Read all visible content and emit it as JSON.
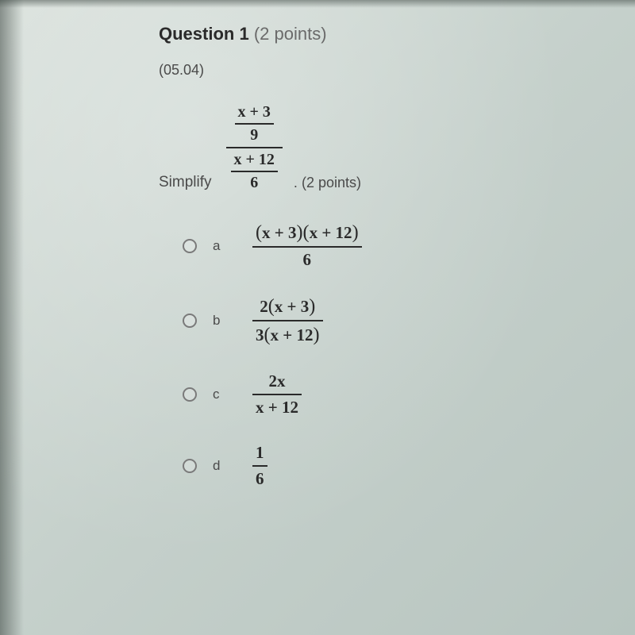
{
  "header": {
    "title_bold": "Question 1",
    "title_light": "(2 points)"
  },
  "section_code": "(05.04)",
  "prompt": {
    "label": "Simplify",
    "expression": {
      "top_numer": "x + 3",
      "top_denom": "9",
      "bot_numer": "x + 12",
      "bot_denom": "6"
    },
    "after_dot": ".",
    "after_points": "(2 points)"
  },
  "options": [
    {
      "label": "a",
      "numer_html": "<span class='paren'>(</span>x + 3<span class='paren'>)(</span>x + 12<span class='paren'>)</span>",
      "denom": "6"
    },
    {
      "label": "b",
      "numer_html": "2<span class='paren'>(</span>x + 3<span class='paren'>)</span>",
      "denom_html": "3<span class='paren'>(</span>x + 12<span class='paren'>)</span>"
    },
    {
      "label": "c",
      "numer": "2x",
      "denom": "x + 12"
    },
    {
      "label": "d",
      "numer": "1",
      "denom": "6"
    }
  ]
}
